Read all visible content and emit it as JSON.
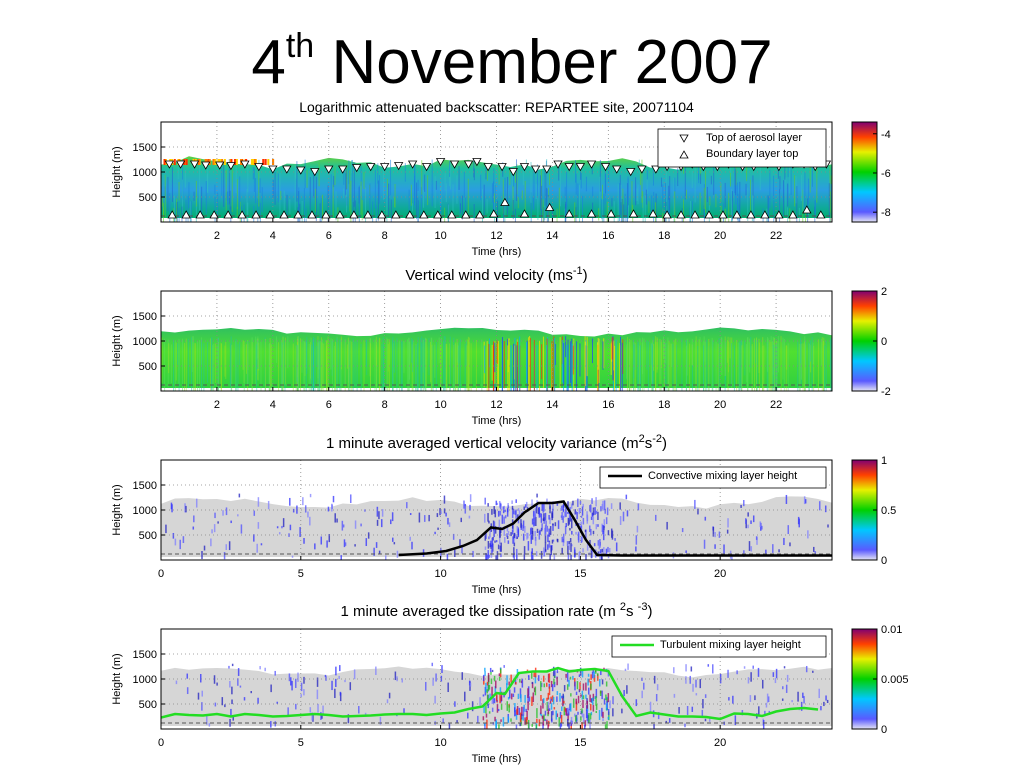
{
  "slide_title": {
    "day": "4",
    "suffix": "th",
    "rest": "November 2007"
  },
  "chart_data": [
    {
      "type": "heatmap",
      "title": "Logarithmic attenuated backscatter: REPARTEE site, 20071104",
      "xlabel": "Time (hrs)",
      "ylabel": "Height (m)",
      "xlim": [
        0,
        24
      ],
      "ylim": [
        0,
        2000
      ],
      "xticks": [
        2,
        4,
        6,
        8,
        10,
        12,
        14,
        16,
        18,
        20,
        22
      ],
      "yticks": [
        500,
        1000,
        1500
      ],
      "colorbar": {
        "ticks": [
          -4,
          -6,
          -8
        ],
        "range": [
          -8.5,
          -3.4
        ]
      },
      "legend": {
        "placement": "top-right",
        "entries": [
          "Top of aerosol layer",
          "Boundary layer top"
        ]
      },
      "series": [
        {
          "name": "Top of aerosol layer",
          "marker": "triangle-down",
          "x": [
            0.3,
            0.7,
            1.2,
            1.6,
            2.1,
            2.5,
            3.0,
            3.5,
            4.0,
            4.5,
            5.0,
            5.5,
            6.0,
            6.5,
            7.0,
            7.5,
            8.0,
            8.5,
            9.0,
            9.5,
            10.0,
            10.5,
            11.0,
            11.3,
            11.7,
            12.2,
            12.6,
            13.0,
            13.4,
            13.8,
            14.2,
            14.6,
            15.0,
            15.4,
            15.9,
            16.3,
            16.8,
            17.2,
            17.7,
            18.1,
            18.6,
            19.0,
            19.4,
            19.9,
            20.3,
            20.8,
            21.2,
            21.7,
            22.1,
            22.6,
            23.0,
            23.4,
            23.8
          ],
          "y": [
            1150,
            1150,
            1150,
            1130,
            1130,
            1120,
            1150,
            1100,
            1050,
            1050,
            1030,
            1000,
            1050,
            1050,
            1080,
            1100,
            1100,
            1120,
            1150,
            1100,
            1200,
            1150,
            1150,
            1200,
            1100,
            1100,
            1000,
            1100,
            1050,
            1050,
            1150,
            1100,
            1100,
            1150,
            1100,
            1050,
            1000,
            1050,
            1050,
            1100,
            1100,
            1150,
            1100,
            1100,
            1150,
            1100,
            1100,
            1150,
            1100,
            1150,
            1150,
            1100,
            1150
          ]
        },
        {
          "name": "Boundary layer top",
          "marker": "triangle-up",
          "x": [
            0.4,
            0.9,
            1.4,
            1.9,
            2.4,
            2.9,
            3.4,
            3.9,
            4.4,
            4.9,
            5.4,
            5.9,
            6.4,
            6.9,
            7.4,
            7.9,
            8.4,
            8.9,
            9.4,
            9.9,
            10.4,
            10.9,
            11.4,
            11.9,
            12.3,
            13.0,
            13.9,
            14.6,
            15.4,
            16.1,
            16.9,
            17.6,
            18.1,
            18.6,
            19.1,
            19.6,
            20.1,
            20.6,
            21.1,
            21.6,
            22.1,
            22.6,
            23.1,
            23.6
          ],
          "y": [
            150,
            150,
            150,
            150,
            150,
            150,
            150,
            150,
            150,
            150,
            150,
            150,
            150,
            150,
            150,
            150,
            150,
            150,
            150,
            150,
            150,
            150,
            150,
            170,
            400,
            170,
            300,
            170,
            170,
            170,
            170,
            170,
            150,
            150,
            150,
            150,
            150,
            150,
            150,
            150,
            150,
            150,
            250,
            150
          ]
        }
      ]
    },
    {
      "type": "heatmap",
      "title_text": "Vertical wind velocity (ms",
      "title_sup": "-1",
      "title_end": ")",
      "xlabel": "Time (hrs)",
      "ylabel": "Height (m)",
      "xlim": [
        0,
        24
      ],
      "ylim": [
        0,
        2000
      ],
      "xticks": [
        2,
        4,
        6,
        8,
        10,
        12,
        14,
        16,
        18,
        20,
        22
      ],
      "yticks": [
        500,
        1000,
        1500
      ],
      "colorbar": {
        "ticks": [
          2,
          0,
          -2
        ],
        "range": [
          -2,
          2
        ]
      }
    },
    {
      "type": "heatmap",
      "title_parts": [
        "1 minute averaged vertical velocity variance (m",
        "2",
        "s",
        "-2",
        ")"
      ],
      "xlabel": "Time (hrs)",
      "ylabel": "Height (m)",
      "xlim": [
        0,
        24
      ],
      "ylim": [
        0,
        2000
      ],
      "xticks": [
        0,
        5,
        10,
        15,
        20
      ],
      "yticks": [
        500,
        1000,
        1500
      ],
      "colorbar": {
        "ticks": [
          1,
          0.5,
          0
        ],
        "range": [
          0,
          1
        ]
      },
      "legend": {
        "placement": "top-right",
        "entries": [
          "Convective mixing layer height"
        ]
      },
      "series": [
        {
          "name": "Convective mixing layer height",
          "color": "#000000",
          "x": [
            8.5,
            9.5,
            10.2,
            10.8,
            11.3,
            11.8,
            12.2,
            12.6,
            13.0,
            13.5,
            14.0,
            14.4,
            14.8,
            15.2,
            15.6,
            16.5,
            18.0,
            24.0
          ],
          "y": [
            100,
            130,
            180,
            280,
            400,
            650,
            620,
            730,
            950,
            1140,
            1140,
            1170,
            800,
            400,
            100,
            90,
            90,
            90
          ]
        }
      ]
    },
    {
      "type": "heatmap",
      "title_parts": [
        "1 minute averaged tke dissipation rate (m ",
        "2",
        "s ",
        "-3",
        ")"
      ],
      "xlabel": "Time (hrs)",
      "ylabel": "Height (m)",
      "xlim": [
        0,
        24
      ],
      "ylim": [
        0,
        2000
      ],
      "xticks": [
        0,
        5,
        10,
        15,
        20
      ],
      "yticks": [
        500,
        1000,
        1500
      ],
      "colorbar": {
        "ticks": [
          0.01,
          0.005,
          0
        ],
        "range": [
          0,
          0.01
        ]
      },
      "legend": {
        "placement": "top-right",
        "entries": [
          "Turbulent mixing layer height"
        ]
      },
      "series": [
        {
          "name": "Turbulent mixing layer height",
          "color": "#22dd22",
          "x": [
            0.0,
            0.5,
            1.0,
            1.5,
            2.0,
            2.5,
            3.0,
            3.5,
            4.0,
            4.5,
            5.0,
            5.5,
            6.0,
            6.5,
            7.0,
            7.5,
            8.0,
            8.5,
            9.0,
            9.5,
            10.0,
            10.5,
            11.0,
            11.5,
            12.0,
            12.3,
            12.8,
            13.3,
            13.8,
            14.2,
            14.6,
            15.0,
            15.5,
            16.0,
            16.5,
            17.0,
            17.5,
            18.0,
            18.5,
            19.0,
            19.5,
            20.0,
            20.5,
            21.0,
            21.5,
            22.0,
            22.5,
            23.0,
            23.5
          ],
          "y": [
            230,
            300,
            280,
            270,
            300,
            250,
            300,
            280,
            250,
            260,
            280,
            300,
            280,
            250,
            260,
            270,
            290,
            300,
            300,
            280,
            310,
            330,
            400,
            450,
            720,
            700,
            1120,
            1150,
            1150,
            1220,
            1150,
            1180,
            1200,
            1160,
            650,
            260,
            330,
            290,
            250,
            250,
            240,
            200,
            310,
            300,
            260,
            350,
            400,
            420,
            390
          ]
        }
      ]
    }
  ]
}
